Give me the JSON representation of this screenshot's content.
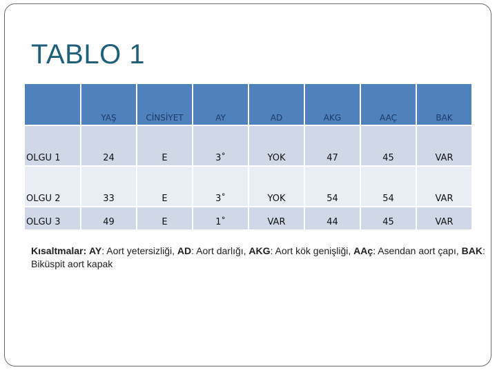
{
  "title": "TABLO 1",
  "table": {
    "headers": [
      "",
      "YAŞ",
      "CİNSİYET",
      "AY",
      "AD",
      "AKG",
      "AAÇ",
      "BAK"
    ],
    "rows": [
      [
        "OLGU 1",
        "24",
        "E",
        "3˚",
        "YOK",
        "47",
        "45",
        "VAR"
      ],
      [
        "OLGU 2",
        "33",
        "E",
        "3˚",
        "YOK",
        "54",
        "54",
        "VAR"
      ],
      [
        "OLGU 3",
        "49",
        "E",
        "1˚",
        "VAR",
        "44",
        "45",
        "VAR"
      ]
    ]
  },
  "note": {
    "lead": "Kısaltmalar:",
    "items": [
      {
        "abbr": "AY",
        "text": ": Aort yetersizliği, "
      },
      {
        "abbr": "AD",
        "text": ": Aort darlığı, "
      },
      {
        "abbr": "AKG",
        "text": ": Aort kök genişliği, "
      },
      {
        "abbr": "AAç",
        "text": ": Asendan aort çapı, "
      },
      {
        "abbr": "BAK",
        "text": ": Biküspit aort kapak"
      }
    ]
  },
  "colors": {
    "header": "#4f81bd",
    "row_odd": "#d0d8e8",
    "row_even": "#e9edf4",
    "title": "#1f5f7a"
  }
}
